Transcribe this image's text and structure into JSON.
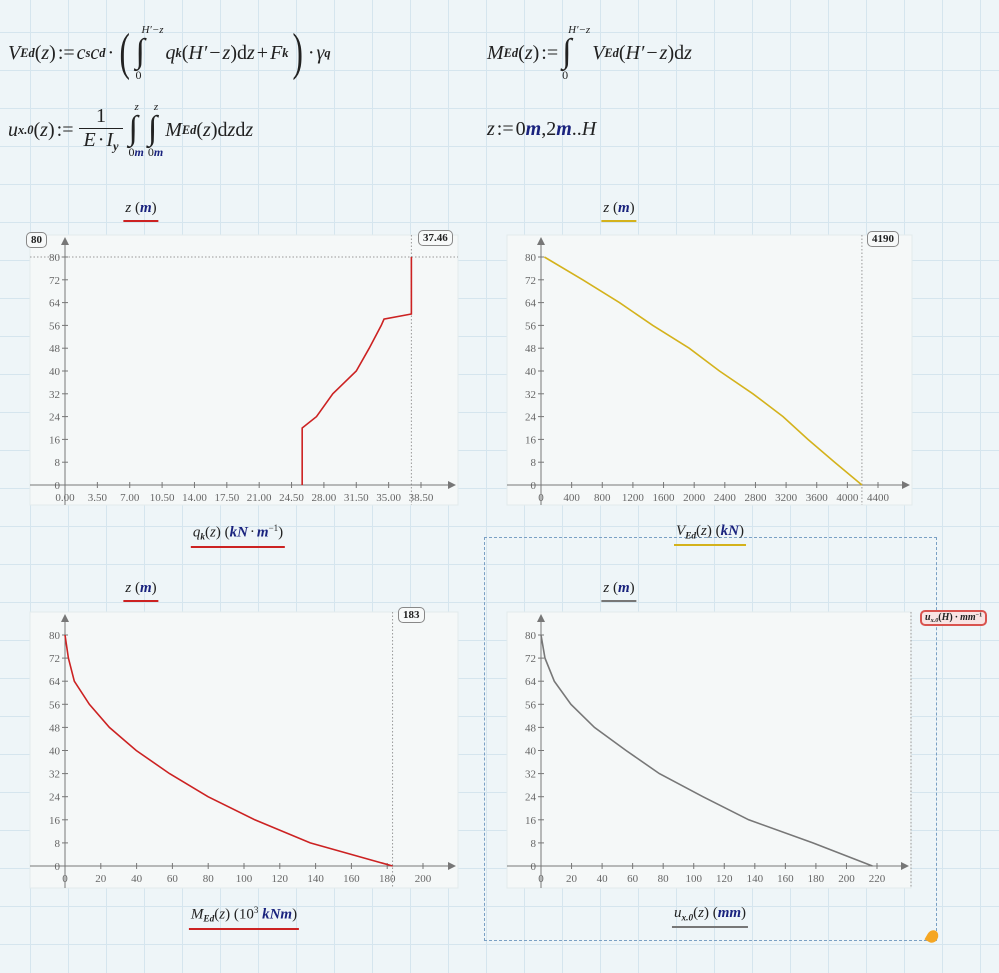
{
  "equations": {
    "v_ed": [
      [
        "i",
        "V"
      ],
      [
        "sub",
        "Ed"
      ],
      [
        "n",
        "("
      ],
      [
        "i",
        "z"
      ],
      [
        "n",
        ")"
      ],
      [
        "op",
        ":="
      ],
      [
        "i",
        "c"
      ],
      [
        "sub",
        "s"
      ],
      [
        "i",
        "c"
      ],
      [
        "sub",
        "d"
      ],
      [
        "op",
        "·"
      ],
      [
        "big",
        "("
      ],
      [
        "int",
        "0",
        "H′−z",
        ""
      ],
      [
        "i",
        "q"
      ],
      [
        "sub",
        "k"
      ],
      [
        "n",
        "("
      ],
      [
        "i",
        "H′"
      ],
      [
        "op",
        "−"
      ],
      [
        "i",
        "z"
      ],
      [
        "n",
        ")"
      ],
      [
        "n",
        " d"
      ],
      [
        "i",
        "z"
      ],
      [
        "op",
        "+"
      ],
      [
        "i",
        "F"
      ],
      [
        "sub",
        "k"
      ],
      [
        "big",
        ")"
      ],
      [
        "op",
        "·"
      ],
      [
        "i",
        "γ"
      ],
      [
        "sub",
        "q"
      ]
    ],
    "m_ed": [
      [
        "i",
        "M"
      ],
      [
        "sub",
        "Ed"
      ],
      [
        "n",
        "("
      ],
      [
        "i",
        "z"
      ],
      [
        "n",
        ")"
      ],
      [
        "op",
        ":="
      ],
      [
        "int",
        "0",
        "H′−z",
        ""
      ],
      [
        "i",
        "V"
      ],
      [
        "sub",
        "Ed"
      ],
      [
        "n",
        "("
      ],
      [
        "i",
        "H′"
      ],
      [
        "op",
        "−"
      ],
      [
        "i",
        "z"
      ],
      [
        "n",
        ")"
      ],
      [
        "n",
        " d"
      ],
      [
        "i",
        "z"
      ]
    ],
    "u_x0": [
      [
        "i",
        "u"
      ],
      [
        "sub",
        "x.0"
      ],
      [
        "n",
        "("
      ],
      [
        "i",
        "z"
      ],
      [
        "n",
        ")"
      ],
      [
        "op",
        ":="
      ],
      [
        "frac",
        "1",
        [
          [
            "i",
            "E"
          ],
          [
            "op",
            "·"
          ],
          [
            "i",
            "I"
          ],
          [
            "sub",
            "y"
          ]
        ]
      ],
      [
        "int",
        "0",
        "z",
        "m"
      ],
      [
        "int",
        "0",
        "z",
        "m"
      ],
      [
        "i",
        "M"
      ],
      [
        "sub",
        "Ed"
      ],
      [
        "n",
        "("
      ],
      [
        "i",
        "z"
      ],
      [
        "n",
        ")"
      ],
      [
        "n",
        " d"
      ],
      [
        "i",
        "z"
      ],
      [
        "n",
        " d"
      ],
      [
        "i",
        "z"
      ]
    ],
    "z_range": [
      [
        "i",
        "z"
      ],
      [
        "op",
        ":="
      ],
      [
        "n",
        "0 "
      ],
      [
        "u",
        "m"
      ],
      [
        "n",
        ",2 "
      ],
      [
        "u",
        "m"
      ],
      [
        "n",
        ".."
      ],
      [
        "i",
        "H"
      ]
    ]
  },
  "chart_data": [
    {
      "type": "line",
      "ylabel": [
        [
          "i",
          "z"
        ],
        [
          "n",
          "  ("
        ],
        [
          "u",
          "m"
        ],
        [
          "n",
          ")"
        ]
      ],
      "xlabel": [
        [
          "i",
          "q"
        ],
        [
          "sub",
          "k"
        ],
        [
          "n",
          "("
        ],
        [
          "i",
          "z"
        ],
        [
          "n",
          ")"
        ],
        [
          "n",
          "  ("
        ],
        [
          "u",
          "kN"
        ],
        [
          "op",
          "·"
        ],
        [
          "u",
          "m"
        ],
        [
          "sup",
          "−1"
        ],
        [
          "n",
          ")"
        ]
      ],
      "color": "#cc2222",
      "x_ticks": [
        "0.00",
        "3.50",
        "7.00",
        "10.50",
        "14.00",
        "17.50",
        "21.00",
        "24.50",
        "28.00",
        "31.50",
        "35.00",
        "38.50"
      ],
      "y_ticks": [
        "0",
        "8",
        "16",
        "24",
        "32",
        "40",
        "48",
        "56",
        "64",
        "72",
        "80"
      ],
      "markers": {
        "x": 37.46,
        "y": 80
      },
      "readouts": {
        "x": "37.46",
        "y": "80"
      },
      "series": [
        {
          "x": [
            25.65,
            25.65,
            27.2,
            28.96,
            31.5,
            32.9,
            34.2,
            34.5,
            37.46,
            37.46
          ],
          "y": [
            0,
            20,
            24,
            32,
            40,
            48,
            56,
            58.2,
            60,
            80
          ]
        }
      ]
    },
    {
      "type": "line",
      "ylabel": [
        [
          "i",
          "z"
        ],
        [
          "n",
          "  ("
        ],
        [
          "u",
          "m"
        ],
        [
          "n",
          ")"
        ]
      ],
      "xlabel": [
        [
          "i",
          "V"
        ],
        [
          "sub",
          "Ed"
        ],
        [
          "n",
          "("
        ],
        [
          "i",
          "z"
        ],
        [
          "n",
          ")"
        ],
        [
          "n",
          "  ("
        ],
        [
          "u",
          "kN"
        ],
        [
          "n",
          ")"
        ]
      ],
      "color": "#d4b21c",
      "x_ticks": [
        "0",
        "400",
        "800",
        "1200",
        "1600",
        "2000",
        "2400",
        "2800",
        "3200",
        "3600",
        "4000",
        "4400"
      ],
      "y_ticks": [
        "0",
        "8",
        "16",
        "24",
        "32",
        "40",
        "48",
        "56",
        "64",
        "72",
        "80"
      ],
      "markers": {
        "x": 4190
      },
      "readouts": {
        "x": "4190"
      },
      "series": [
        {
          "x": [
            4190,
            3834,
            3485,
            3160,
            2767,
            2330,
            1935,
            1460,
            1024,
            545,
            44
          ],
          "y": [
            0,
            8,
            16,
            24,
            32,
            40,
            48,
            56,
            64,
            72,
            80
          ]
        }
      ]
    },
    {
      "type": "line",
      "ylabel": [
        [
          "i",
          "z"
        ],
        [
          "n",
          "  ("
        ],
        [
          "u",
          "m"
        ],
        [
          "n",
          ")"
        ]
      ],
      "xlabel": [
        [
          "i",
          "M"
        ],
        [
          "sub",
          "Ed"
        ],
        [
          "n",
          "("
        ],
        [
          "i",
          "z"
        ],
        [
          "n",
          ")"
        ],
        [
          "n",
          "  (10"
        ],
        [
          "sup",
          "3"
        ],
        [
          "n",
          " "
        ],
        [
          "u",
          "kNm"
        ],
        [
          "n",
          ")"
        ]
      ],
      "color": "#cc2222",
      "x_ticks": [
        "0",
        "20",
        "40",
        "60",
        "80",
        "100",
        "120",
        "140",
        "160",
        "180",
        "200"
      ],
      "y_ticks": [
        "0",
        "8",
        "16",
        "24",
        "32",
        "40",
        "48",
        "56",
        "64",
        "72",
        "80"
      ],
      "markers": {
        "x": 183
      },
      "readouts": {
        "x": "183"
      },
      "series": [
        {
          "x": [
            183,
            137,
            106,
            79.9,
            58.4,
            39.8,
            24.8,
            13.6,
            5.2,
            1.9,
            0
          ],
          "y": [
            0,
            8,
            16,
            24,
            32,
            40,
            48,
            56,
            64,
            72,
            80
          ]
        }
      ]
    },
    {
      "type": "line",
      "ylabel": [
        [
          "i",
          "z"
        ],
        [
          "n",
          "  ("
        ],
        [
          "u",
          "m"
        ],
        [
          "n",
          ")"
        ]
      ],
      "xlabel": [
        [
          "i",
          "u"
        ],
        [
          "sub",
          "x.0"
        ],
        [
          "n",
          "("
        ],
        [
          "i",
          "z"
        ],
        [
          "n",
          ")"
        ],
        [
          "n",
          "  ("
        ],
        [
          "u",
          "mm"
        ],
        [
          "n",
          ")"
        ]
      ],
      "color": "#777777",
      "x_ticks": [
        "0",
        "20",
        "40",
        "60",
        "80",
        "100",
        "120",
        "140",
        "160",
        "180",
        "200",
        "220"
      ],
      "y_ticks": [
        "0",
        "8",
        "16",
        "24",
        "32",
        "40",
        "48",
        "56",
        "64",
        "72",
        "80"
      ],
      "markers": {},
      "readouts": {
        "x_expr": [
          [
            "i",
            "u"
          ],
          [
            "sub",
            "x.0"
          ],
          [
            "n",
            "("
          ],
          [
            "i",
            "H"
          ],
          [
            "n",
            ")"
          ],
          [
            "op",
            "·"
          ],
          [
            "i",
            "mm"
          ],
          [
            "sup",
            "−1"
          ]
        ]
      },
      "series": [
        {
          "x": [
            217,
            178,
            136,
            106,
            77.5,
            55.7,
            35,
            19.6,
            8.7,
            2.6,
            0
          ],
          "y": [
            0,
            8,
            16,
            24,
            32,
            40,
            48,
            56,
            64,
            72,
            80
          ]
        }
      ]
    }
  ]
}
